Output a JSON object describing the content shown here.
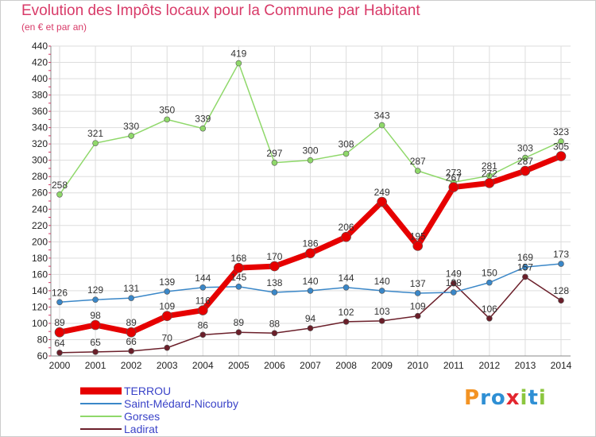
{
  "title": "Evolution des Impôts locaux pour la Commune par Habitant",
  "subtitle": "(en € et par an)",
  "logo": {
    "letters": [
      "P",
      "r",
      "o",
      "x",
      "i",
      "t",
      "i"
    ],
    "colors": [
      "#f39323",
      "#2e8fd4",
      "#2e8fd4",
      "#e3262f",
      "#8cc63f",
      "#2e8fd4",
      "#8cc63f"
    ]
  },
  "chart_data": {
    "type": "line",
    "x": [
      "2000",
      "2001",
      "2002",
      "2003",
      "2004",
      "2005",
      "2006",
      "2007",
      "2008",
      "2009",
      "2010",
      "2011",
      "2012",
      "2013",
      "2014"
    ],
    "ylim": [
      60,
      440
    ],
    "yticks": [
      60,
      80,
      100,
      120,
      140,
      160,
      180,
      200,
      220,
      240,
      260,
      280,
      300,
      320,
      340,
      360,
      380,
      400,
      420,
      440
    ],
    "grid": true,
    "legend_position": "bottom-left",
    "series": [
      {
        "name": "Ladirat",
        "color": "#6b1f2a",
        "width": 1.5,
        "marker": 3.5,
        "values": [
          64,
          65,
          66,
          70,
          86,
          89,
          88,
          94,
          102,
          103,
          109,
          149,
          106,
          157,
          128
        ],
        "labels": [
          "64",
          "65",
          "66",
          "70",
          "86",
          "89",
          "88",
          "94",
          "102",
          "103",
          "109",
          "149",
          "106",
          "157",
          "128"
        ]
      },
      {
        "name": "Saint-Médard-Nicourby",
        "color": "#3a87c8",
        "width": 1.5,
        "marker": 3.5,
        "values": [
          126,
          129,
          131,
          139,
          144,
          145,
          138,
          140,
          144,
          140,
          137,
          138,
          150,
          169,
          173
        ],
        "labels": [
          "126",
          "129",
          "131",
          "139",
          "144",
          "145",
          "138",
          "140",
          "144",
          "140",
          "137",
          "138",
          "150",
          "169",
          "173"
        ]
      },
      {
        "name": "Gorses",
        "color": "#8fd86a",
        "width": 1.5,
        "marker": 3.5,
        "values": [
          258,
          321,
          330,
          350,
          339,
          419,
          297,
          300,
          308,
          343,
          287,
          273,
          281,
          303,
          323
        ],
        "labels": [
          "258",
          "321",
          "330",
          "350",
          "339",
          "419",
          "297",
          "300",
          "308",
          "343",
          "287",
          "273",
          "281",
          "303",
          "323"
        ]
      },
      {
        "name": "TERROU",
        "color": "#e60000",
        "width": 7,
        "marker": 6,
        "values": [
          89,
          98,
          89,
          109,
          116,
          168,
          170,
          186,
          206,
          249,
          195,
          267,
          272,
          287,
          305
        ],
        "labels": [
          "89",
          "98",
          "89",
          "109",
          "116",
          "168",
          "170",
          "186",
          "206",
          "249",
          "195",
          "267",
          "272",
          "287",
          "305"
        ]
      }
    ],
    "legend_order": [
      "TERROU",
      "Saint-Médard-Nicourby",
      "Gorses",
      "Ladirat"
    ]
  }
}
